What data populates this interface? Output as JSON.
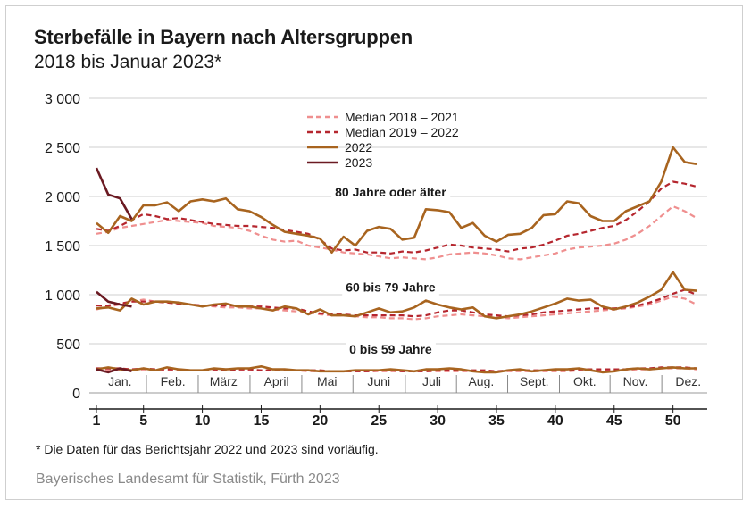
{
  "title": "Sterbefälle in Bayern nach Altersgruppen",
  "subtitle": "2018 bis Januar 2023*",
  "footnote": "* Die Daten für das Berichtsjahr 2022 und 2023 sind vorläufig.",
  "source": "Bayerisches Landesamt für Statistik, Fürth 2023",
  "chart_data": {
    "type": "line",
    "ylim": [
      0,
      3000
    ],
    "yticks": [
      0,
      500,
      1000,
      1500,
      2000,
      2500,
      3000
    ],
    "ytick_labels": [
      "0",
      "500",
      "1 000",
      "1 500",
      "2 000",
      "2 500",
      "3 000"
    ],
    "xlim": [
      1,
      52
    ],
    "xticks": [
      1,
      5,
      10,
      15,
      20,
      25,
      30,
      35,
      40,
      45,
      50
    ],
    "xtick_labels": [
      "1",
      "5",
      "10",
      "15",
      "20",
      "25",
      "30",
      "35",
      "40",
      "45",
      "50"
    ],
    "months": [
      {
        "label": "Jan.",
        "week": 3
      },
      {
        "label": "Feb.",
        "week": 7.5
      },
      {
        "label": "März",
        "week": 11.8
      },
      {
        "label": "April",
        "week": 16.3
      },
      {
        "label": "Mai",
        "week": 20.6
      },
      {
        "label": "Juni",
        "week": 25
      },
      {
        "label": "Juli",
        "week": 29.5
      },
      {
        "label": "Aug.",
        "week": 33.7
      },
      {
        "label": "Sept.",
        "week": 38.2
      },
      {
        "label": "Okt.",
        "week": 42.5
      },
      {
        "label": "Nov.",
        "week": 46.8
      },
      {
        "label": "Dez.",
        "week": 51.3
      }
    ],
    "grid": "horizontal",
    "legend_position": "top-center",
    "group_labels": [
      {
        "text": "80 Jahre oder älter",
        "week": 26,
        "value": 2000
      },
      {
        "text": "60 bis 79 Jahre",
        "week": 26,
        "value": 1030
      },
      {
        "text": "0 bis 59 Jahre",
        "week": 26,
        "value": 400
      }
    ],
    "series": [
      {
        "name": "Median 2018 – 2021",
        "color": "#ef8f8f",
        "dash": true,
        "groups": [
          [
            1620,
            1640,
            1680,
            1700,
            1720,
            1740,
            1760,
            1750,
            1740,
            1730,
            1700,
            1690,
            1680,
            1650,
            1600,
            1560,
            1540,
            1550,
            1500,
            1480,
            1460,
            1430,
            1420,
            1410,
            1390,
            1370,
            1380,
            1370,
            1360,
            1380,
            1410,
            1420,
            1430,
            1420,
            1400,
            1370,
            1360,
            1380,
            1400,
            1420,
            1460,
            1480,
            1490,
            1500,
            1520,
            1560,
            1620,
            1700,
            1800,
            1900,
            1850,
            1780
          ],
          [
            850,
            880,
            900,
            930,
            950,
            930,
            920,
            910,
            900,
            890,
            880,
            870,
            870,
            860,
            860,
            850,
            840,
            830,
            820,
            800,
            790,
            790,
            780,
            770,
            770,
            760,
            760,
            750,
            760,
            780,
            790,
            800,
            790,
            780,
            770,
            760,
            770,
            780,
            790,
            800,
            810,
            820,
            830,
            840,
            850,
            860,
            880,
            900,
            940,
            980,
            960,
            900
          ],
          [
            230,
            230,
            240,
            230,
            240,
            230,
            240,
            230,
            230,
            230,
            240,
            230,
            240,
            230,
            230,
            230,
            230,
            230,
            220,
            220,
            220,
            220,
            220,
            220,
            220,
            220,
            220,
            220,
            220,
            220,
            220,
            220,
            220,
            220,
            220,
            220,
            220,
            220,
            220,
            220,
            220,
            230,
            230,
            230,
            230,
            230,
            240,
            240,
            250,
            250,
            250,
            240
          ]
        ]
      },
      {
        "name": "Median 2019 – 2022",
        "color": "#b5262e",
        "dash": true,
        "groups": [
          [
            1670,
            1650,
            1700,
            1760,
            1820,
            1800,
            1770,
            1780,
            1760,
            1740,
            1720,
            1710,
            1700,
            1700,
            1690,
            1680,
            1660,
            1640,
            1620,
            1560,
            1470,
            1450,
            1460,
            1430,
            1430,
            1420,
            1440,
            1430,
            1450,
            1480,
            1510,
            1500,
            1480,
            1470,
            1460,
            1440,
            1470,
            1480,
            1510,
            1550,
            1600,
            1620,
            1650,
            1680,
            1700,
            1760,
            1850,
            1950,
            2080,
            2150,
            2130,
            2100
          ],
          [
            890,
            890,
            910,
            930,
            930,
            930,
            920,
            910,
            900,
            890,
            890,
            890,
            890,
            880,
            880,
            870,
            860,
            860,
            830,
            810,
            800,
            800,
            790,
            790,
            790,
            790,
            790,
            780,
            790,
            820,
            840,
            840,
            820,
            800,
            790,
            780,
            790,
            800,
            820,
            830,
            840,
            850,
            860,
            860,
            860,
            870,
            890,
            920,
            960,
            1010,
            1050,
            1000
          ],
          [
            250,
            250,
            250,
            240,
            250,
            240,
            240,
            240,
            230,
            230,
            240,
            230,
            240,
            240,
            230,
            230,
            230,
            230,
            230,
            230,
            220,
            220,
            220,
            220,
            230,
            230,
            220,
            220,
            220,
            230,
            230,
            230,
            230,
            230,
            220,
            230,
            230,
            230,
            230,
            230,
            230,
            240,
            240,
            240,
            240,
            240,
            250,
            250,
            260,
            260,
            260,
            250
          ]
        ]
      },
      {
        "name": "2022",
        "color": "#a8641f",
        "dash": false,
        "groups": [
          [
            1730,
            1630,
            1800,
            1750,
            1910,
            1910,
            1940,
            1850,
            1950,
            1970,
            1950,
            1980,
            1870,
            1850,
            1790,
            1710,
            1640,
            1620,
            1600,
            1570,
            1430,
            1590,
            1500,
            1650,
            1690,
            1670,
            1560,
            1580,
            1870,
            1860,
            1840,
            1680,
            1730,
            1600,
            1540,
            1610,
            1620,
            1680,
            1810,
            1820,
            1950,
            1930,
            1800,
            1750,
            1750,
            1850,
            1900,
            1950,
            2150,
            2500,
            2350,
            2330
          ],
          [
            860,
            870,
            840,
            960,
            900,
            930,
            930,
            920,
            900,
            880,
            900,
            910,
            880,
            880,
            860,
            840,
            880,
            860,
            800,
            850,
            790,
            790,
            780,
            820,
            860,
            820,
            830,
            870,
            940,
            900,
            870,
            850,
            870,
            780,
            760,
            780,
            800,
            830,
            870,
            910,
            960,
            940,
            950,
            880,
            850,
            880,
            920,
            980,
            1050,
            1230,
            1050,
            1040
          ],
          [
            240,
            260,
            240,
            230,
            250,
            230,
            260,
            240,
            230,
            230,
            250,
            240,
            250,
            250,
            270,
            240,
            240,
            230,
            230,
            220,
            220,
            220,
            230,
            230,
            230,
            240,
            230,
            220,
            240,
            240,
            250,
            240,
            220,
            210,
            210,
            230,
            240,
            220,
            230,
            240,
            240,
            250,
            230,
            210,
            220,
            240,
            250,
            240,
            250,
            260,
            250,
            250
          ]
        ]
      },
      {
        "name": "2023",
        "color": "#6b1a22",
        "dash": false,
        "groups": [
          [
            2290,
            2020,
            1980,
            1770
          ],
          [
            1030,
            930,
            900,
            880
          ],
          [
            240,
            210,
            250,
            220
          ]
        ]
      }
    ]
  }
}
